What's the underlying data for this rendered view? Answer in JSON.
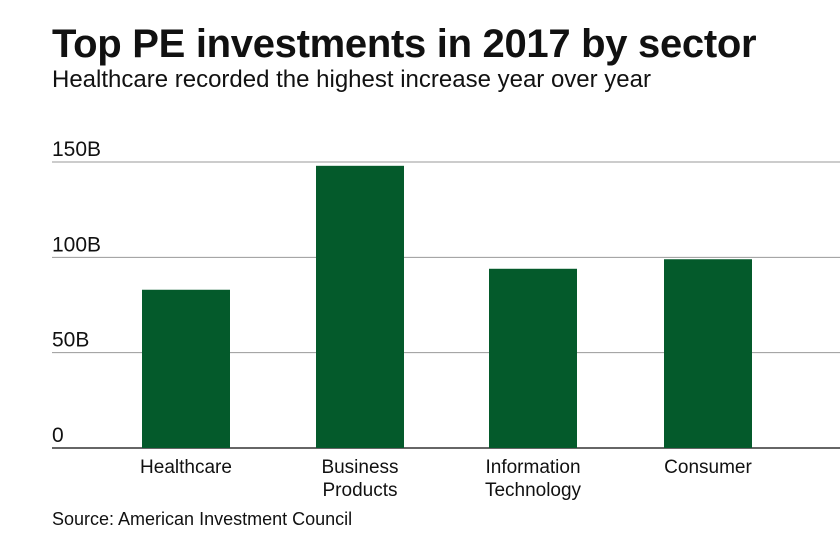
{
  "chart_data": {
    "type": "bar",
    "title": "Top PE investments in 2017 by sector",
    "subtitle": "Healthcare recorded the highest increase year over year",
    "categories": [
      "Healthcare",
      "Business Products",
      "Information Technology",
      "Consumer"
    ],
    "category_lines": [
      [
        "Healthcare"
      ],
      [
        "Business",
        "Products"
      ],
      [
        "Information",
        "Technology"
      ],
      [
        "Consumer"
      ]
    ],
    "values": [
      83,
      148,
      94,
      99
    ],
    "unit": "B",
    "ylim": [
      0,
      150
    ],
    "yticks": [
      0,
      50,
      100,
      150
    ],
    "ytick_labels": [
      "0",
      "50B",
      "100B",
      "150B"
    ],
    "grid": true,
    "xlabel": "",
    "ylabel": "",
    "source": "Source: American Investment Council",
    "colors": {
      "bar": "#045a2b",
      "grid": "#9a9a9a",
      "axis": "#333333"
    }
  }
}
